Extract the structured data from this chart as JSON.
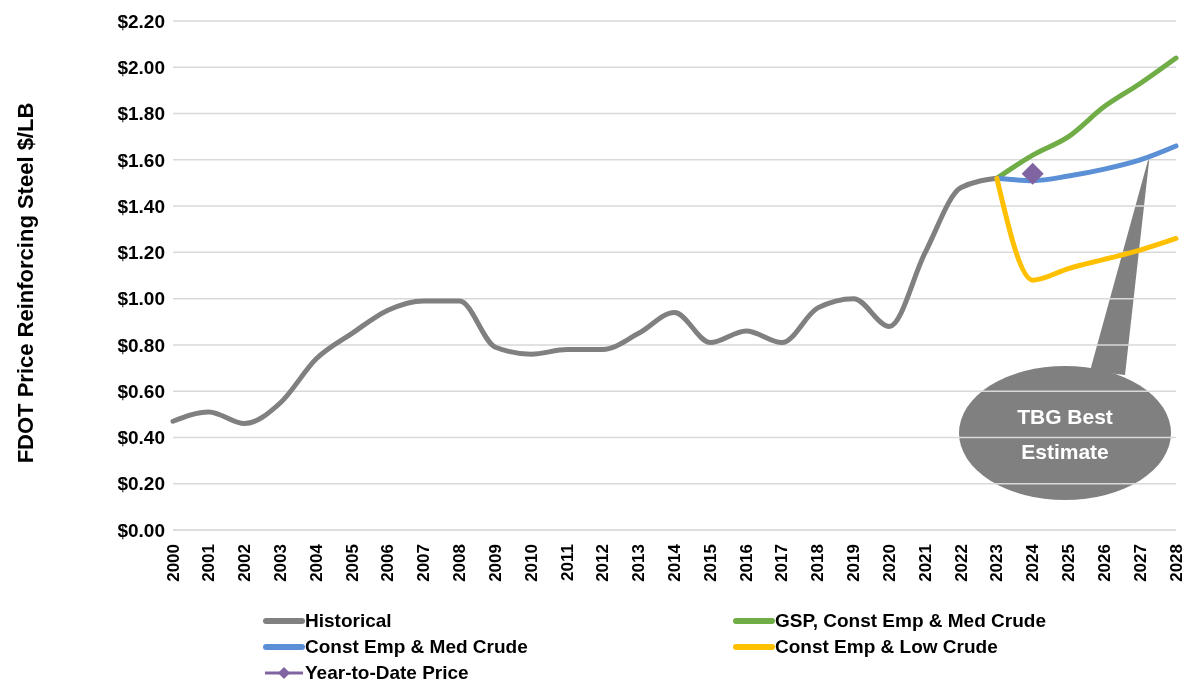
{
  "chart_data": {
    "type": "line",
    "ylabel": "FDOT Price Reinforcing Steel $/LB",
    "categories": [
      "2000",
      "2001",
      "2002",
      "2003",
      "2004",
      "2005",
      "2006",
      "2007",
      "2008",
      "2009",
      "2010",
      "2011",
      "2012",
      "2013",
      "2014",
      "2015",
      "2016",
      "2017",
      "2018",
      "2019",
      "2020",
      "2021",
      "2022",
      "2023",
      "2024",
      "2025",
      "2026",
      "2027",
      "2028"
    ],
    "series": [
      {
        "name": "Historical",
        "color": "#808080",
        "values": [
          0.47,
          0.51,
          0.46,
          0.55,
          0.74,
          0.85,
          0.95,
          0.99,
          0.99,
          0.79,
          0.76,
          0.78,
          0.78,
          0.85,
          0.94,
          0.81,
          0.86,
          0.81,
          0.96,
          1.0,
          0.88,
          1.2,
          1.48,
          1.52,
          null,
          null,
          null,
          null,
          null
        ]
      },
      {
        "name": "GSP, Const Emp & Med Crude",
        "color": "#70ad47",
        "values": [
          null,
          null,
          null,
          null,
          null,
          null,
          null,
          null,
          null,
          null,
          null,
          null,
          null,
          null,
          null,
          null,
          null,
          null,
          null,
          null,
          null,
          null,
          null,
          1.52,
          1.62,
          1.7,
          1.83,
          1.93,
          2.04
        ]
      },
      {
        "name": "Const Emp & Med Crude",
        "color": "#5b8fd6",
        "values": [
          null,
          null,
          null,
          null,
          null,
          null,
          null,
          null,
          null,
          null,
          null,
          null,
          null,
          null,
          null,
          null,
          null,
          null,
          null,
          null,
          null,
          null,
          null,
          1.52,
          1.51,
          1.53,
          1.56,
          1.6,
          1.66
        ]
      },
      {
        "name": "Const Emp & Low Crude",
        "color": "#ffc000",
        "values": [
          null,
          null,
          null,
          null,
          null,
          null,
          null,
          null,
          null,
          null,
          null,
          null,
          null,
          null,
          null,
          null,
          null,
          null,
          null,
          null,
          null,
          null,
          null,
          1.52,
          1.08,
          1.13,
          1.17,
          1.21,
          1.26
        ]
      },
      {
        "name": "Year-to-Date Price",
        "type": "scatter",
        "marker": "diamond",
        "color": "#8064a2",
        "values": [
          null,
          null,
          null,
          null,
          null,
          null,
          null,
          null,
          null,
          null,
          null,
          null,
          null,
          null,
          null,
          null,
          null,
          null,
          null,
          null,
          null,
          null,
          null,
          null,
          1.54,
          null,
          null,
          null,
          null
        ]
      }
    ],
    "ylim": [
      0,
      2.2
    ],
    "yticks": [
      {
        "value": 0,
        "label": "$0.00"
      },
      {
        "value": 0.2,
        "label": "$0.20"
      },
      {
        "value": 0.4,
        "label": "$0.40"
      },
      {
        "value": 0.6,
        "label": "$0.60"
      },
      {
        "value": 0.8,
        "label": "$0.80"
      },
      {
        "value": 1.0,
        "label": "$1.00"
      },
      {
        "value": 1.2,
        "label": "$1.20"
      },
      {
        "value": 1.4,
        "label": "$1.40"
      },
      {
        "value": 1.6,
        "label": "$1.60"
      },
      {
        "value": 1.8,
        "label": "$1.80"
      },
      {
        "value": 2.0,
        "label": "$2.00"
      },
      {
        "value": 2.2,
        "label": "$2.20"
      }
    ],
    "grid": "y",
    "legend": "bottom",
    "marker": "none",
    "line_style": "solid",
    "annotations": [
      "TBG Best Estimate"
    ]
  }
}
